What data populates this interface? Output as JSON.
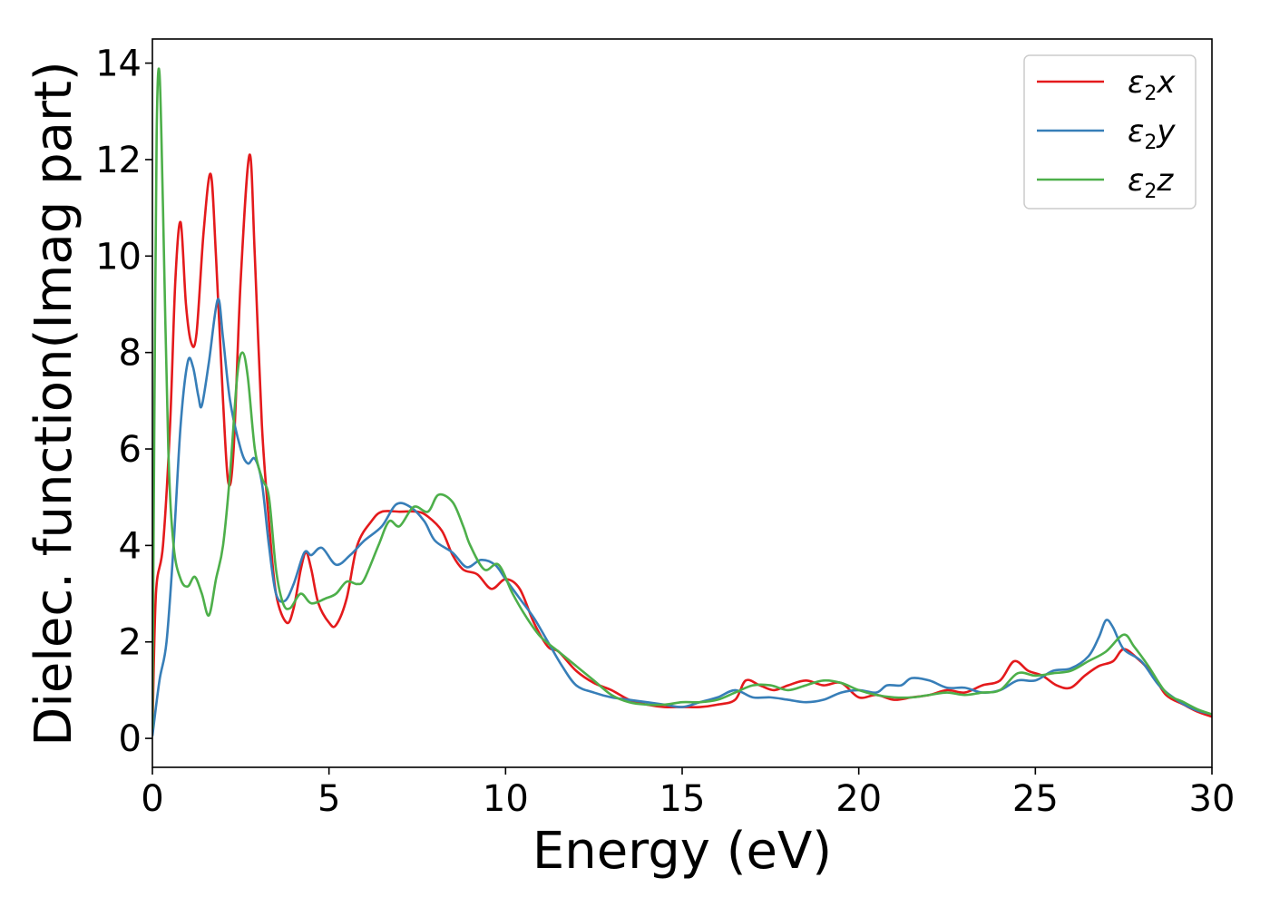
{
  "chart_data": {
    "type": "line",
    "title": "",
    "xlabel": "Energy (eV)",
    "ylabel": "Dielec. function(Imag part)",
    "xlim": [
      0,
      30
    ],
    "ylim": [
      -0.6,
      14.5
    ],
    "xticks": [
      0,
      5,
      10,
      15,
      20,
      25,
      30
    ],
    "yticks": [
      0,
      2,
      4,
      6,
      8,
      10,
      12,
      14
    ],
    "grid": false,
    "legend_position": "top-right",
    "series": [
      {
        "name": "ε₂x",
        "base": "ε",
        "sub": "2",
        "suffix": "x",
        "color": "#e41a1c",
        "points": [
          [
            0,
            0.1
          ],
          [
            0.1,
            3.0
          ],
          [
            0.3,
            4.0
          ],
          [
            0.5,
            6.5
          ],
          [
            0.65,
            9.5
          ],
          [
            0.8,
            10.7
          ],
          [
            0.95,
            9.0
          ],
          [
            1.1,
            8.2
          ],
          [
            1.25,
            8.4
          ],
          [
            1.45,
            10.5
          ],
          [
            1.65,
            11.7
          ],
          [
            1.8,
            10.0
          ],
          [
            2.0,
            7.0
          ],
          [
            2.15,
            5.3
          ],
          [
            2.3,
            6.0
          ],
          [
            2.5,
            9.5
          ],
          [
            2.75,
            12.1
          ],
          [
            2.9,
            10.0
          ],
          [
            3.1,
            6.5
          ],
          [
            3.3,
            4.5
          ],
          [
            3.5,
            3.0
          ],
          [
            3.8,
            2.4
          ],
          [
            4.0,
            2.7
          ],
          [
            4.2,
            3.5
          ],
          [
            4.35,
            3.85
          ],
          [
            4.5,
            3.5
          ],
          [
            4.7,
            2.8
          ],
          [
            5.0,
            2.4
          ],
          [
            5.2,
            2.35
          ],
          [
            5.5,
            2.9
          ],
          [
            5.8,
            4.0
          ],
          [
            6.2,
            4.5
          ],
          [
            6.5,
            4.7
          ],
          [
            7.0,
            4.7
          ],
          [
            7.5,
            4.7
          ],
          [
            7.8,
            4.6
          ],
          [
            8.2,
            4.3
          ],
          [
            8.5,
            3.8
          ],
          [
            8.8,
            3.5
          ],
          [
            9.2,
            3.4
          ],
          [
            9.6,
            3.1
          ],
          [
            10.0,
            3.3
          ],
          [
            10.4,
            3.1
          ],
          [
            10.8,
            2.4
          ],
          [
            11.2,
            1.9
          ],
          [
            11.5,
            1.8
          ],
          [
            12.0,
            1.4
          ],
          [
            12.5,
            1.15
          ],
          [
            13.0,
            1.0
          ],
          [
            13.5,
            0.8
          ],
          [
            14.0,
            0.7
          ],
          [
            14.5,
            0.65
          ],
          [
            15.0,
            0.65
          ],
          [
            15.5,
            0.65
          ],
          [
            16.0,
            0.7
          ],
          [
            16.5,
            0.8
          ],
          [
            16.8,
            1.2
          ],
          [
            17.2,
            1.1
          ],
          [
            17.6,
            1.0
          ],
          [
            18.0,
            1.1
          ],
          [
            18.5,
            1.2
          ],
          [
            19.0,
            1.1
          ],
          [
            19.5,
            1.15
          ],
          [
            20.0,
            0.85
          ],
          [
            20.5,
            0.9
          ],
          [
            21.0,
            0.8
          ],
          [
            21.5,
            0.85
          ],
          [
            22.0,
            0.9
          ],
          [
            22.5,
            1.0
          ],
          [
            23.0,
            0.95
          ],
          [
            23.5,
            1.1
          ],
          [
            24.0,
            1.2
          ],
          [
            24.4,
            1.6
          ],
          [
            24.8,
            1.4
          ],
          [
            25.2,
            1.3
          ],
          [
            25.6,
            1.1
          ],
          [
            26.0,
            1.05
          ],
          [
            26.4,
            1.3
          ],
          [
            26.8,
            1.5
          ],
          [
            27.2,
            1.6
          ],
          [
            27.5,
            1.85
          ],
          [
            27.9,
            1.65
          ],
          [
            28.3,
            1.35
          ],
          [
            28.7,
            0.9
          ],
          [
            29.2,
            0.7
          ],
          [
            29.6,
            0.55
          ],
          [
            30.0,
            0.45
          ]
        ]
      },
      {
        "name": "ε₂y",
        "base": "ε",
        "sub": "2",
        "suffix": "y",
        "color": "#377eb8",
        "points": [
          [
            0,
            0.05
          ],
          [
            0.2,
            1.2
          ],
          [
            0.4,
            2.0
          ],
          [
            0.6,
            4.0
          ],
          [
            0.8,
            6.5
          ],
          [
            1.0,
            7.8
          ],
          [
            1.15,
            7.7
          ],
          [
            1.3,
            7.1
          ],
          [
            1.4,
            6.9
          ],
          [
            1.6,
            7.8
          ],
          [
            1.85,
            9.1
          ],
          [
            2.0,
            8.3
          ],
          [
            2.2,
            7.0
          ],
          [
            2.5,
            6.0
          ],
          [
            2.7,
            5.7
          ],
          [
            2.9,
            5.8
          ],
          [
            3.1,
            5.3
          ],
          [
            3.3,
            4.0
          ],
          [
            3.5,
            3.0
          ],
          [
            3.75,
            2.85
          ],
          [
            4.0,
            3.2
          ],
          [
            4.3,
            3.85
          ],
          [
            4.5,
            3.8
          ],
          [
            4.8,
            3.95
          ],
          [
            5.2,
            3.6
          ],
          [
            5.6,
            3.8
          ],
          [
            6.0,
            4.1
          ],
          [
            6.5,
            4.4
          ],
          [
            6.9,
            4.85
          ],
          [
            7.3,
            4.8
          ],
          [
            7.7,
            4.5
          ],
          [
            8.0,
            4.1
          ],
          [
            8.5,
            3.85
          ],
          [
            8.9,
            3.55
          ],
          [
            9.3,
            3.7
          ],
          [
            9.7,
            3.6
          ],
          [
            10.0,
            3.3
          ],
          [
            10.4,
            2.9
          ],
          [
            10.8,
            2.5
          ],
          [
            11.2,
            2.0
          ],
          [
            11.6,
            1.5
          ],
          [
            12.0,
            1.1
          ],
          [
            12.5,
            0.95
          ],
          [
            13.0,
            0.85
          ],
          [
            13.5,
            0.8
          ],
          [
            14.0,
            0.75
          ],
          [
            14.5,
            0.7
          ],
          [
            15.0,
            0.65
          ],
          [
            15.5,
            0.75
          ],
          [
            16.0,
            0.85
          ],
          [
            16.5,
            1.0
          ],
          [
            17.0,
            0.85
          ],
          [
            17.5,
            0.85
          ],
          [
            18.0,
            0.8
          ],
          [
            18.5,
            0.75
          ],
          [
            19.0,
            0.8
          ],
          [
            19.5,
            0.95
          ],
          [
            20.0,
            1.0
          ],
          [
            20.5,
            0.95
          ],
          [
            20.8,
            1.1
          ],
          [
            21.2,
            1.1
          ],
          [
            21.5,
            1.25
          ],
          [
            22.0,
            1.2
          ],
          [
            22.5,
            1.05
          ],
          [
            23.0,
            1.05
          ],
          [
            23.5,
            0.95
          ],
          [
            24.0,
            1.0
          ],
          [
            24.5,
            1.2
          ],
          [
            25.0,
            1.2
          ],
          [
            25.5,
            1.4
          ],
          [
            26.0,
            1.45
          ],
          [
            26.5,
            1.7
          ],
          [
            26.8,
            2.1
          ],
          [
            27.0,
            2.45
          ],
          [
            27.2,
            2.3
          ],
          [
            27.5,
            1.85
          ],
          [
            28.0,
            1.6
          ],
          [
            28.5,
            1.1
          ],
          [
            29.0,
            0.8
          ],
          [
            29.5,
            0.6
          ],
          [
            30.0,
            0.5
          ]
        ]
      },
      {
        "name": "ε₂z",
        "base": "ε",
        "sub": "2",
        "suffix": "z",
        "color": "#4daf4a",
        "points": [
          [
            0,
            0.2
          ],
          [
            0.05,
            6.0
          ],
          [
            0.12,
            12.5
          ],
          [
            0.2,
            13.8
          ],
          [
            0.3,
            11.0
          ],
          [
            0.45,
            6.0
          ],
          [
            0.6,
            4.0
          ],
          [
            0.8,
            3.3
          ],
          [
            1.0,
            3.15
          ],
          [
            1.2,
            3.35
          ],
          [
            1.4,
            3.0
          ],
          [
            1.6,
            2.55
          ],
          [
            1.8,
            3.3
          ],
          [
            2.0,
            4.0
          ],
          [
            2.2,
            5.5
          ],
          [
            2.4,
            7.5
          ],
          [
            2.55,
            8.0
          ],
          [
            2.7,
            7.5
          ],
          [
            2.9,
            6.0
          ],
          [
            3.1,
            5.4
          ],
          [
            3.3,
            5.0
          ],
          [
            3.5,
            3.5
          ],
          [
            3.7,
            2.8
          ],
          [
            3.9,
            2.7
          ],
          [
            4.2,
            3.0
          ],
          [
            4.5,
            2.8
          ],
          [
            4.9,
            2.9
          ],
          [
            5.2,
            3.0
          ],
          [
            5.5,
            3.25
          ],
          [
            5.8,
            3.2
          ],
          [
            6.0,
            3.3
          ],
          [
            6.4,
            4.0
          ],
          [
            6.7,
            4.5
          ],
          [
            7.0,
            4.4
          ],
          [
            7.4,
            4.8
          ],
          [
            7.8,
            4.7
          ],
          [
            8.1,
            5.05
          ],
          [
            8.5,
            4.9
          ],
          [
            8.8,
            4.4
          ],
          [
            9.0,
            4.0
          ],
          [
            9.4,
            3.5
          ],
          [
            9.8,
            3.6
          ],
          [
            10.2,
            3.0
          ],
          [
            10.6,
            2.5
          ],
          [
            11.0,
            2.1
          ],
          [
            11.5,
            1.8
          ],
          [
            12.0,
            1.5
          ],
          [
            12.5,
            1.2
          ],
          [
            13.0,
            0.9
          ],
          [
            13.5,
            0.75
          ],
          [
            14.0,
            0.7
          ],
          [
            14.5,
            0.7
          ],
          [
            15.0,
            0.75
          ],
          [
            15.5,
            0.75
          ],
          [
            16.0,
            0.8
          ],
          [
            16.5,
            0.95
          ],
          [
            17.0,
            1.1
          ],
          [
            17.5,
            1.1
          ],
          [
            18.0,
            1.0
          ],
          [
            18.5,
            1.1
          ],
          [
            19.0,
            1.2
          ],
          [
            19.5,
            1.15
          ],
          [
            20.0,
            1.0
          ],
          [
            20.5,
            0.9
          ],
          [
            21.0,
            0.85
          ],
          [
            21.5,
            0.85
          ],
          [
            22.0,
            0.9
          ],
          [
            22.5,
            0.95
          ],
          [
            23.0,
            0.9
          ],
          [
            23.5,
            0.95
          ],
          [
            24.0,
            1.0
          ],
          [
            24.5,
            1.35
          ],
          [
            25.0,
            1.3
          ],
          [
            25.5,
            1.35
          ],
          [
            26.0,
            1.4
          ],
          [
            26.5,
            1.6
          ],
          [
            27.0,
            1.8
          ],
          [
            27.5,
            2.15
          ],
          [
            27.8,
            1.9
          ],
          [
            28.2,
            1.5
          ],
          [
            28.7,
            0.95
          ],
          [
            29.2,
            0.75
          ],
          [
            29.6,
            0.6
          ],
          [
            30.0,
            0.5
          ]
        ]
      }
    ]
  }
}
